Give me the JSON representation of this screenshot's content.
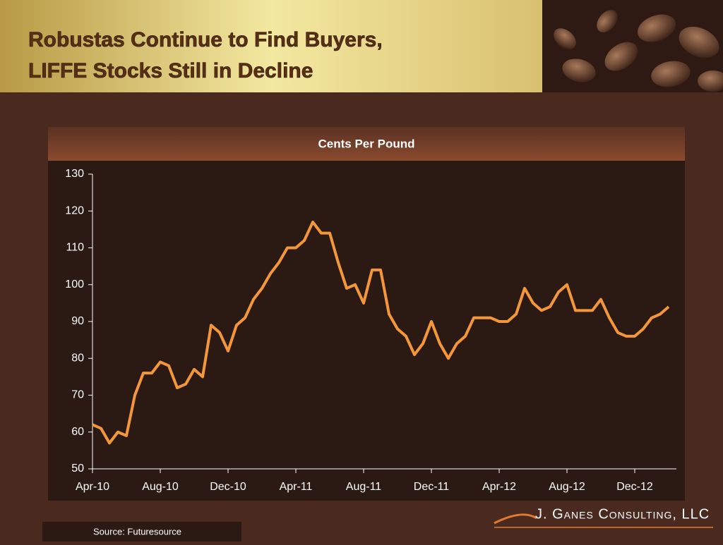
{
  "slide": {
    "title": [
      "Robustas Continue to Find Buyers,",
      "LIFFE Stocks Still in Decline"
    ],
    "source": "Source: Futuresource",
    "brand": "J. Ganes Consulting, LLC"
  },
  "chart_data": {
    "type": "line",
    "title": "Cents Per Pound",
    "categories": [
      "Apr-10",
      null,
      null,
      null,
      null,
      null,
      null,
      null,
      "Aug-10",
      null,
      null,
      null,
      null,
      null,
      null,
      null,
      "Dec-10",
      null,
      null,
      null,
      null,
      null,
      null,
      null,
      "Apr-11",
      null,
      null,
      null,
      null,
      null,
      null,
      null,
      "Aug-11",
      null,
      null,
      null,
      null,
      null,
      null,
      null,
      "Dec-11",
      null,
      null,
      null,
      null,
      null,
      null,
      null,
      "Apr-12",
      null,
      null,
      null,
      null,
      null,
      null,
      null,
      "Aug-12",
      null,
      null,
      null,
      null,
      null,
      null,
      null,
      "Dec-12",
      null,
      null,
      null,
      null
    ],
    "series": [
      {
        "name": "Robusta",
        "color": "#f4973a",
        "values": [
          62,
          61,
          57,
          60,
          59,
          70,
          76,
          76,
          79,
          78,
          72,
          73,
          77,
          75,
          89,
          87,
          82,
          89,
          91,
          96,
          99,
          103,
          106,
          110,
          110,
          112,
          117,
          114,
          114,
          106,
          99,
          100,
          95,
          104,
          104,
          92,
          88,
          86,
          81,
          84,
          90,
          84,
          80,
          84,
          86,
          91,
          91,
          91,
          90,
          90,
          92,
          99,
          95,
          93,
          94,
          98,
          100,
          93,
          93,
          93,
          96,
          91,
          87,
          86,
          86,
          88,
          91,
          92,
          94
        ]
      }
    ],
    "ylim": [
      50,
      130
    ],
    "yticks": [
      50,
      60,
      70,
      80,
      90,
      100,
      110,
      120,
      130
    ]
  }
}
